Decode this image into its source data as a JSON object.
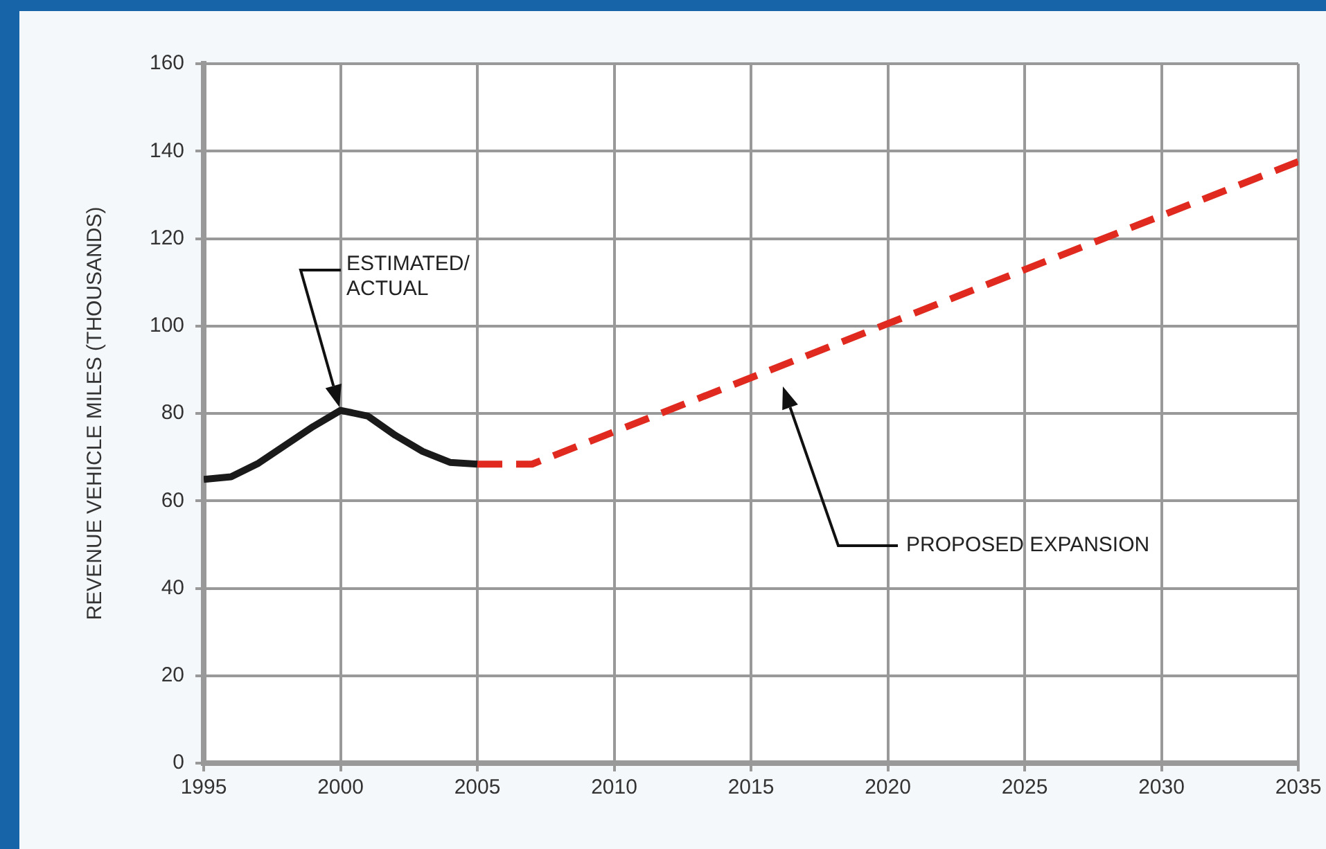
{
  "chart_data": {
    "type": "line",
    "ylabel": "REVENUE VEHICLE MILES (THOUSANDS)",
    "xlim": [
      1995,
      2035
    ],
    "xticks": [
      1995,
      2000,
      2005,
      2010,
      2015,
      2020,
      2025,
      2030,
      2035
    ],
    "ylim": [
      0,
      160
    ],
    "yticks": [
      0,
      20,
      40,
      60,
      80,
      100,
      120,
      140,
      160
    ],
    "grid": true,
    "legend": false,
    "marker": "none",
    "series": [
      {
        "color": "#1a1a1a",
        "line_style": "solid",
        "x": [
          1995,
          1996,
          1997,
          1998,
          1999,
          2000,
          2001,
          2002,
          2003,
          2004,
          2005
        ],
        "values": [
          64.9,
          65.5,
          68.6,
          72.8,
          77,
          80.7,
          79.4,
          75,
          71.3,
          68.8,
          68.4
        ]
      },
      {
        "color": "#e02a20",
        "line_style": "dashed",
        "x": [
          2005,
          2007,
          2035
        ],
        "values": [
          68.4,
          68.4,
          137.6
        ]
      }
    ],
    "annotations": [
      "ESTIMATED/\nACTUAL",
      "PROPOSED EXPANSION"
    ]
  }
}
